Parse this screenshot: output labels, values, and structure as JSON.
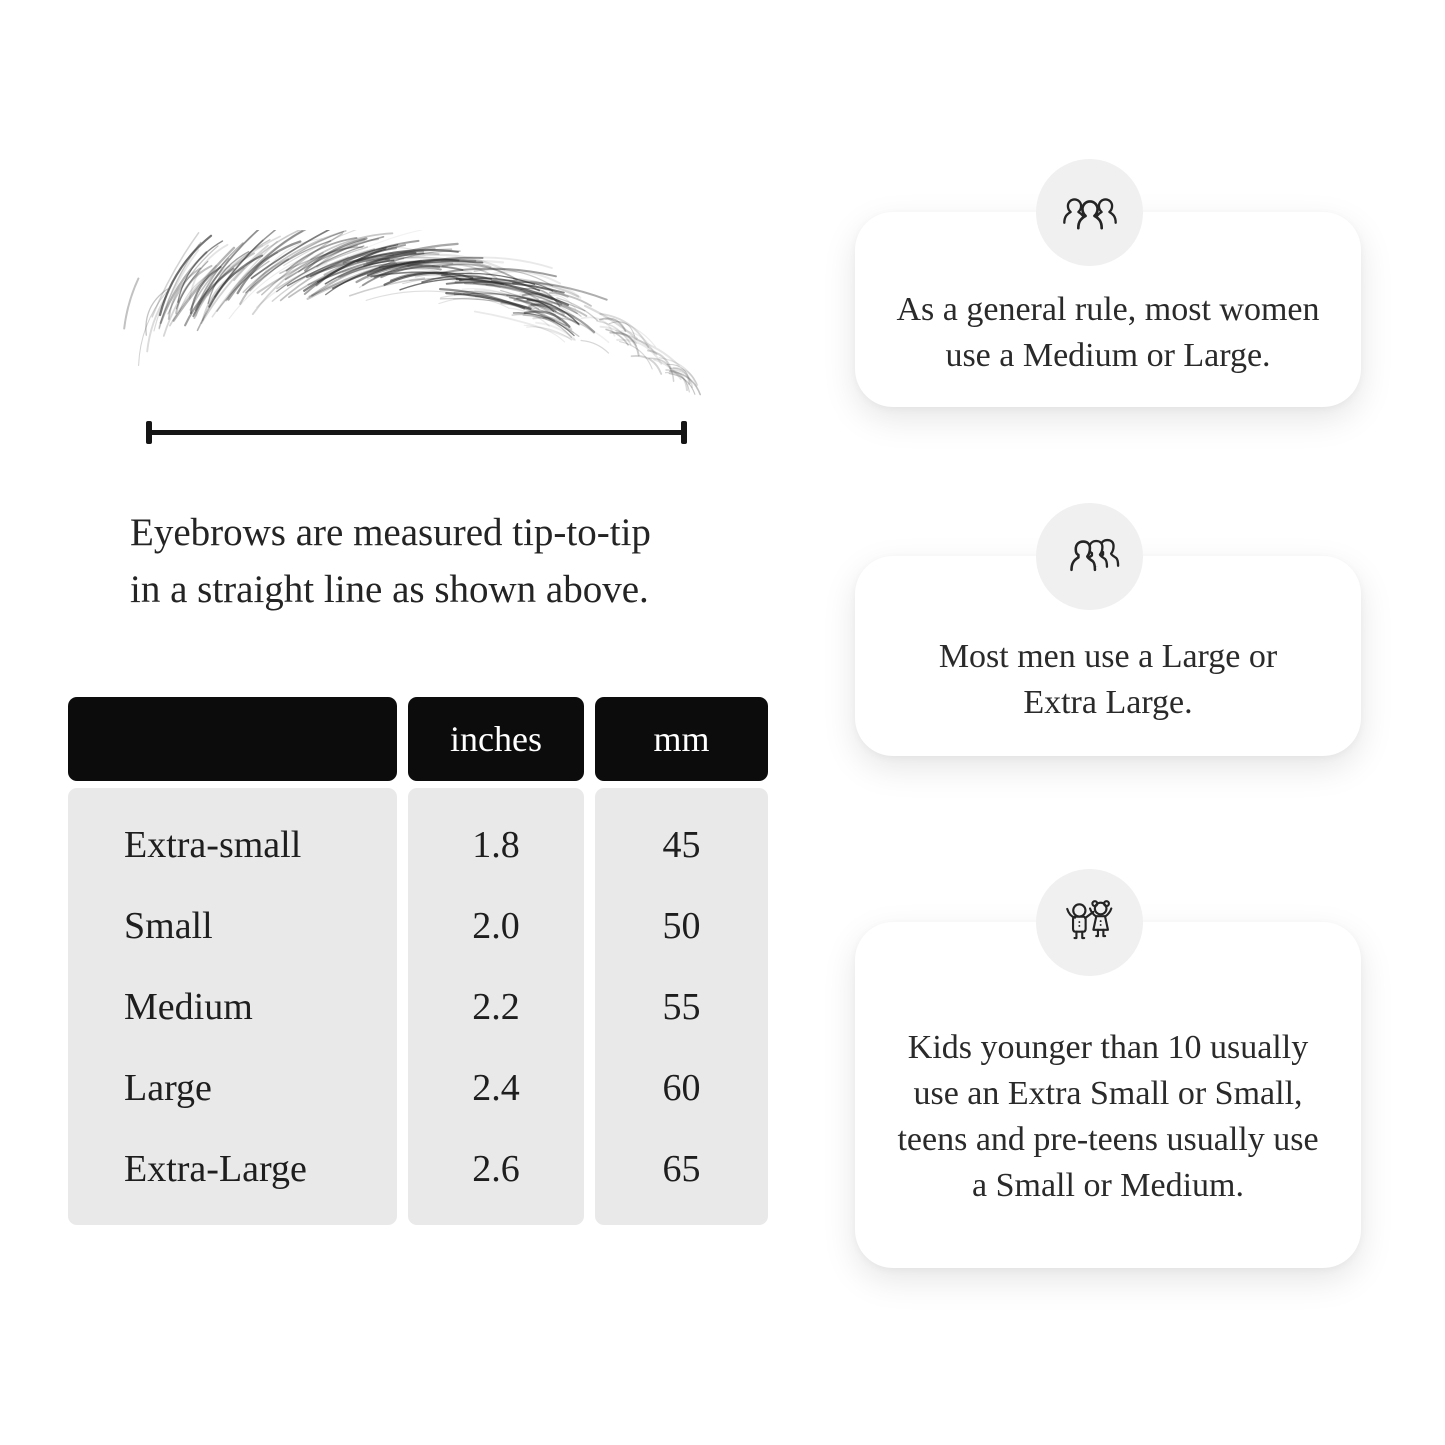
{
  "diagram": {
    "caption_line1": "Eyebrows are measured tip-to-tip",
    "caption_line2": "in a straight line as shown above."
  },
  "size_table": {
    "headers": [
      "",
      "inches",
      "mm"
    ],
    "rows": [
      {
        "label": "Extra-small",
        "inches": "1.8",
        "mm": "45"
      },
      {
        "label": "Small",
        "inches": "2.0",
        "mm": "50"
      },
      {
        "label": "Medium",
        "inches": "2.2",
        "mm": "55"
      },
      {
        "label": "Large",
        "inches": "2.4",
        "mm": "60"
      },
      {
        "label": "Extra-Large",
        "inches": "2.6",
        "mm": "65"
      }
    ]
  },
  "info_cards": [
    {
      "icon": "women-group-icon",
      "text": "As a general rule, most women use a Medium or Large."
    },
    {
      "icon": "men-group-icon",
      "text": "Most men use a Large or Extra Large."
    },
    {
      "icon": "kids-icon",
      "text": "Kids younger than 10 usually use an Extra Small or Small, teens and pre-teens usually use a Small or Medium."
    }
  ],
  "colors": {
    "header_black": "#0c0c0c",
    "row_gray": "#e9e9e9",
    "badge_gray": "#f0f0f0",
    "text_dark": "#242424"
  }
}
